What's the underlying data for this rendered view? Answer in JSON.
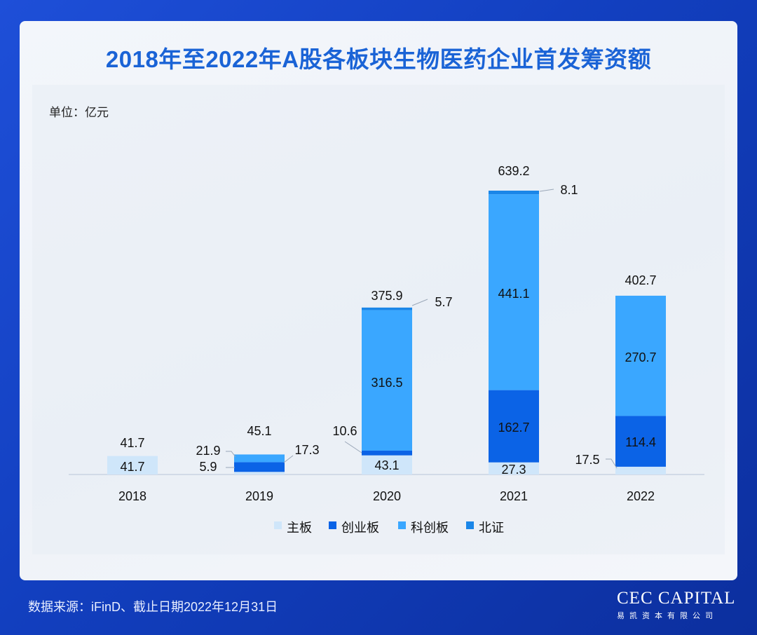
{
  "title": "2018年至2022年A股各板块生物医药企业首发筹资额",
  "unit_label": "单位：亿元",
  "footer": "数据来源：iFinD、截止日期2022年12月31日",
  "logo": {
    "en": "CEC CAPITAL",
    "cn": "易凯资本有限公司"
  },
  "colors": {
    "title": "#1a63d6",
    "主板": "#cfe6fa",
    "创业板": "#0b63e6",
    "科创板": "#3aa7ff",
    "北证": "#1a86e8"
  },
  "chart_data": {
    "type": "bar",
    "stacked": true,
    "title": "2018年至2022年A股各板块生物医药企业首发筹资额",
    "unit": "亿元",
    "categories": [
      "2018",
      "2019",
      "2020",
      "2021",
      "2022"
    ],
    "series": [
      {
        "name": "主板",
        "values": [
          41.7,
          5.9,
          43.1,
          27.3,
          17.5
        ]
      },
      {
        "name": "创业板",
        "values": [
          0,
          21.9,
          10.6,
          162.7,
          114.4
        ]
      },
      {
        "name": "科创板",
        "values": [
          0,
          17.3,
          316.5,
          441.1,
          270.7
        ]
      },
      {
        "name": "北证",
        "values": [
          0,
          0,
          5.7,
          8.1,
          0
        ]
      }
    ],
    "totals": [
      "41.7",
      "45.1",
      "375.9",
      "639.2",
      "402.7"
    ],
    "ylim": [
      0,
      660
    ],
    "legend": [
      "主板",
      "创业板",
      "科创板",
      "北证"
    ],
    "legend_position": "bottom",
    "grid": false
  }
}
